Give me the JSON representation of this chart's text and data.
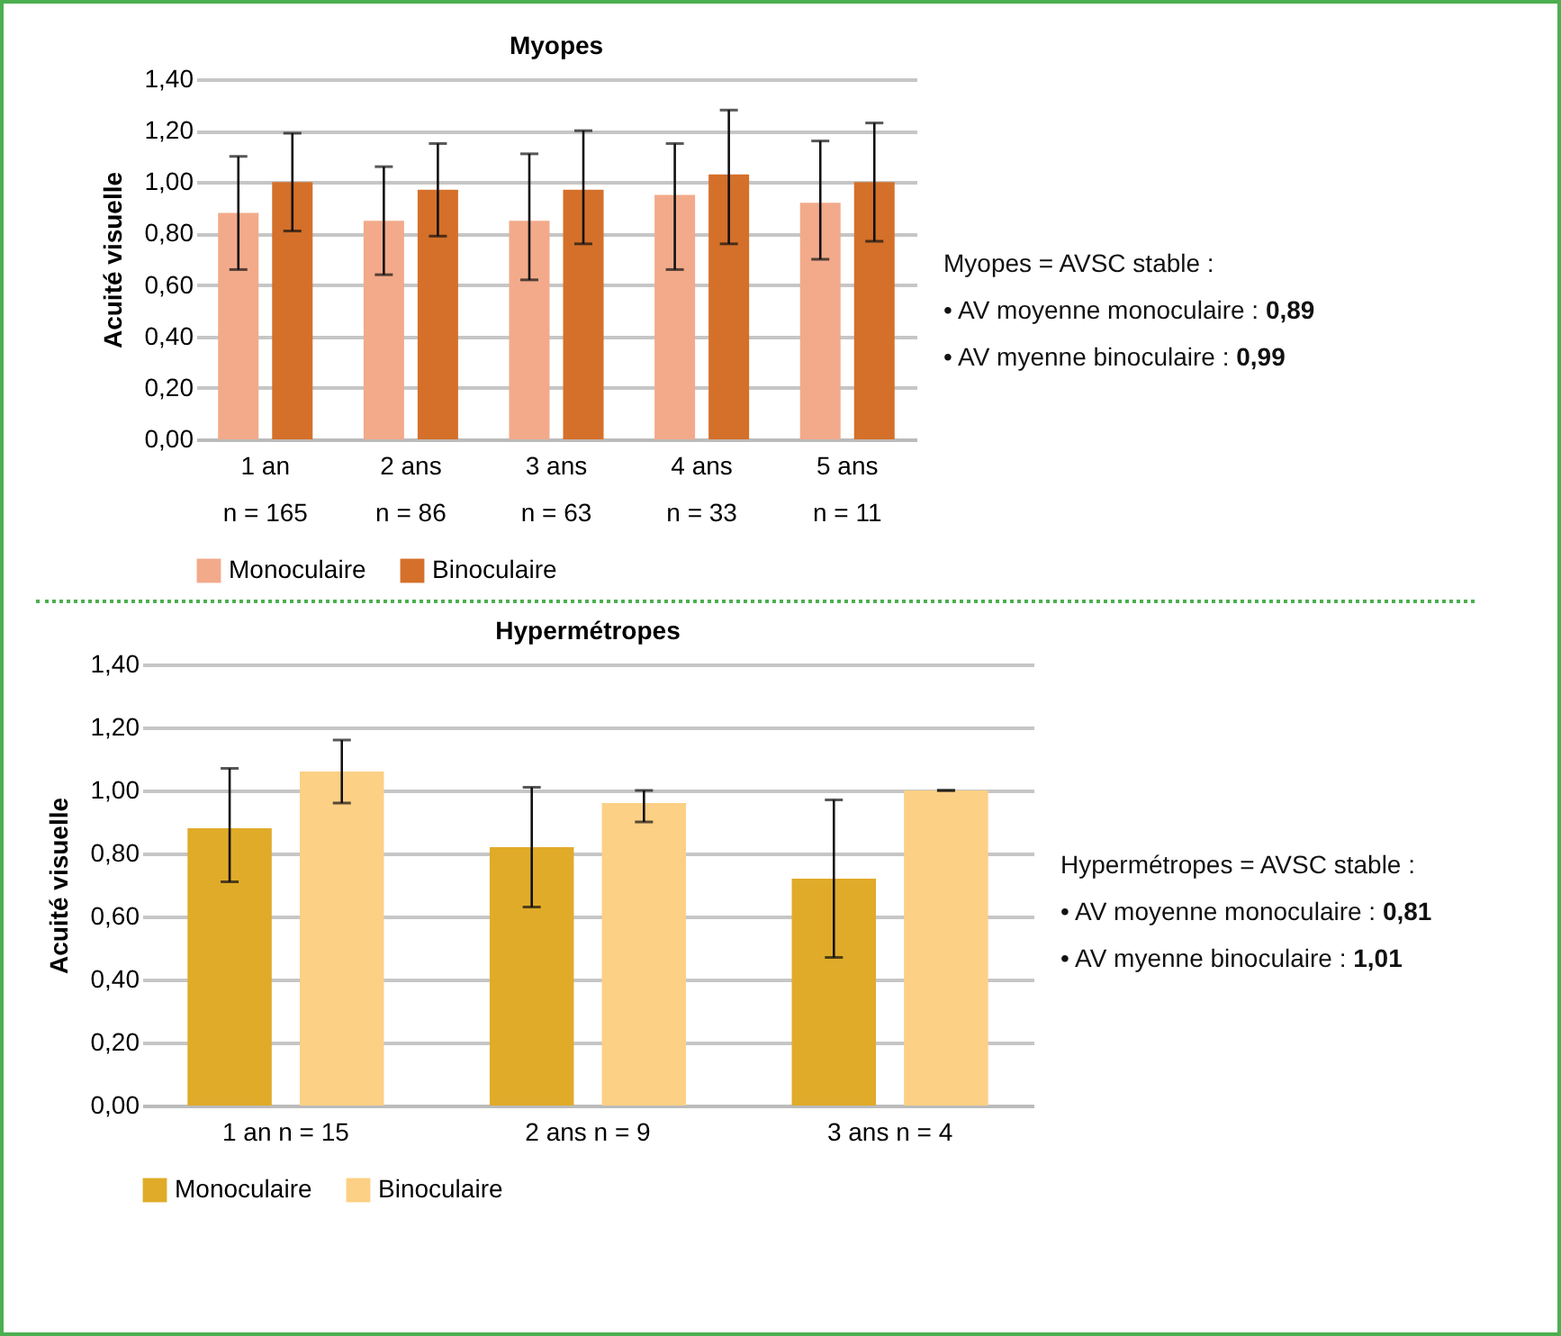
{
  "chart_data": [
    {
      "type": "bar",
      "title": "Myopes",
      "ylabel": "Acuité visuelle",
      "categories": [
        "1 an\nn = 165",
        "2 ans\nn = 86",
        "3 ans\nn = 63",
        "4 ans\nn = 33",
        "5 ans\nn = 11"
      ],
      "series": [
        {
          "name": "Monoculaire",
          "color": "#f2aa8a",
          "values": [
            0.88,
            0.85,
            0.85,
            0.95,
            0.92
          ],
          "errors": [
            [
              0.66,
              1.1
            ],
            [
              0.64,
              1.06
            ],
            [
              0.62,
              1.11
            ],
            [
              0.66,
              1.15
            ],
            [
              0.7,
              1.16
            ]
          ]
        },
        {
          "name": "Binoculaire",
          "color": "#d4702a",
          "values": [
            1.0,
            0.97,
            0.97,
            1.03,
            1.0
          ],
          "errors": [
            [
              0.81,
              1.19
            ],
            [
              0.79,
              1.15
            ],
            [
              0.76,
              1.2
            ],
            [
              0.76,
              1.28
            ],
            [
              0.77,
              1.23
            ]
          ]
        }
      ],
      "ylim": [
        0,
        1.4
      ],
      "yticks": [
        {
          "value": 0,
          "label": "0,00"
        },
        {
          "value": 0.2,
          "label": "0,20"
        },
        {
          "value": 0.4,
          "label": "0,40"
        },
        {
          "value": 0.6,
          "label": "0,60"
        },
        {
          "value": 0.8,
          "label": "0,80"
        },
        {
          "value": 1,
          "label": "1,00"
        },
        {
          "value": 1.2,
          "label": "1,20"
        },
        {
          "value": 1.4,
          "label": "1,40"
        }
      ],
      "grid": "y",
      "legend": "bottom",
      "annotations": [
        "Myopes = AVSC stable :",
        "• AV moyenne monoculaire : 0,89",
        "• AV myenne binoculaire : 0,99"
      ]
    },
    {
      "type": "bar",
      "title": "Hypermétropes",
      "ylabel": "Acuité visuelle",
      "categories": [
        "1 an n = 15",
        "2 ans n = 9",
        "3 ans n = 4"
      ],
      "series": [
        {
          "name": "Monoculaire",
          "color": "#e0ab28",
          "values": [
            0.88,
            0.82,
            0.72
          ],
          "errors": [
            [
              0.71,
              1.07
            ],
            [
              0.63,
              1.01
            ],
            [
              0.47,
              0.97
            ]
          ]
        },
        {
          "name": "Binoculaire",
          "color": "#fcd085",
          "values": [
            1.06,
            0.96,
            1.0
          ],
          "errors": [
            [
              0.96,
              1.16
            ],
            [
              0.9,
              1.0
            ],
            [
              1.0,
              1.0
            ]
          ]
        }
      ],
      "ylim": [
        0,
        1.4
      ],
      "yticks": [
        {
          "value": 0,
          "label": "0,00"
        },
        {
          "value": 0.2,
          "label": "0,20"
        },
        {
          "value": 0.4,
          "label": "0,40"
        },
        {
          "value": 0.6,
          "label": "0,60"
        },
        {
          "value": 0.8,
          "label": "0,80"
        },
        {
          "value": 1,
          "label": "1,00"
        },
        {
          "value": 1.2,
          "label": "1,20"
        },
        {
          "value": 1.4,
          "label": "1,40"
        }
      ],
      "grid": "y",
      "legend": "bottom",
      "annotations": [
        "Hypermétropes = AVSC stable :",
        "• AV moyenne monoculaire : 0,81",
        "• AV myenne binoculaire : 1,01"
      ]
    }
  ]
}
